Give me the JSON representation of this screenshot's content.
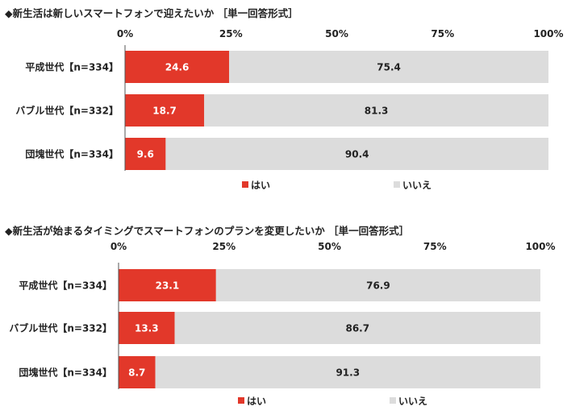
{
  "colors": {
    "yes": "#e2382a",
    "no": "#dcdcdc",
    "axis": "#555555",
    "grid": "#9a9a9a"
  },
  "chart_data": [
    {
      "type": "bar",
      "orientation": "horizontal",
      "stacked": true,
      "title": "◆新生活は新しいスマートフォンで迎えたいか ［単一回答形式］",
      "x_ticks": [
        "0%",
        "25%",
        "50%",
        "75%",
        "100%"
      ],
      "xlim": [
        0,
        100
      ],
      "categories": [
        "平成世代【n=334】",
        "バブル世代【n=332】",
        "団塊世代【n=334】"
      ],
      "series": [
        {
          "name": "はい",
          "color": "#e2382a",
          "values": [
            24.6,
            18.7,
            9.6
          ]
        },
        {
          "name": "いいえ",
          "color": "#dcdcdc",
          "values": [
            75.4,
            81.3,
            90.4
          ]
        }
      ],
      "legend": [
        "はい",
        "いいえ"
      ],
      "legend_position": "bottom"
    },
    {
      "type": "bar",
      "orientation": "horizontal",
      "stacked": true,
      "title": "◆新生活が始まるタイミングでスマートフォンのプランを変更したいか ［単一回答形式］",
      "x_ticks": [
        "0%",
        "25%",
        "50%",
        "75%",
        "100%"
      ],
      "xlim": [
        0,
        100
      ],
      "categories": [
        "平成世代【n=334】",
        "バブル世代【n=332】",
        "団塊世代【n=334】"
      ],
      "series": [
        {
          "name": "はい",
          "color": "#e2382a",
          "values": [
            23.1,
            13.3,
            8.7
          ]
        },
        {
          "name": "いいえ",
          "color": "#dcdcdc",
          "values": [
            76.9,
            86.7,
            91.3
          ]
        }
      ],
      "legend": [
        "はい",
        "いいえ"
      ],
      "legend_position": "bottom"
    }
  ]
}
